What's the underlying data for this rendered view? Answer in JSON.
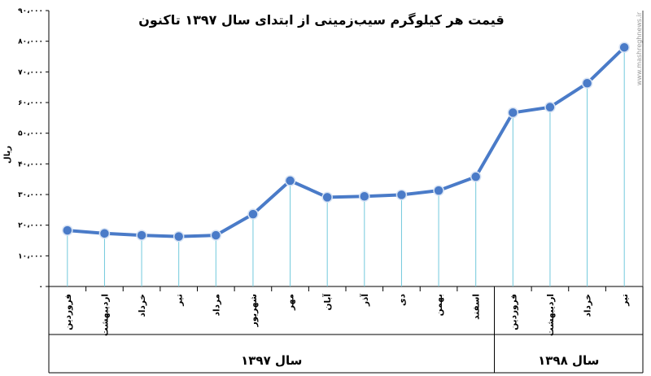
{
  "chart_data": {
    "type": "line",
    "title": "قیمت هر کیلوگرم سیب‌زمینی از ابتدای سال ۱۳۹۷ تاکنون",
    "ylabel": "ریال",
    "xlabel": "",
    "ylim": [
      0,
      90000
    ],
    "y_ticks": [
      0,
      10000,
      20000,
      30000,
      40000,
      50000,
      60000,
      70000,
      80000,
      90000
    ],
    "y_tick_labels": [
      "۰",
      "۱۰،۰۰۰",
      "۲۰،۰۰۰",
      "۳۰،۰۰۰",
      "۴۰،۰۰۰",
      "۵۰،۰۰۰",
      "۶۰،۰۰۰",
      "۷۰،۰۰۰",
      "۸۰،۰۰۰",
      "۹۰،۰۰۰"
    ],
    "categories": [
      "فروردین",
      "اردیبهشت",
      "خرداد",
      "تیر",
      "مرداد",
      "شهریور",
      "مهر",
      "آبان",
      "آذر",
      "دی",
      "بهمن",
      "اسفند",
      "فروردین",
      "اردیبهشت",
      "خرداد",
      "تیر"
    ],
    "values": [
      18300,
      17300,
      16700,
      16300,
      16700,
      23600,
      34500,
      29100,
      29400,
      29900,
      31300,
      35800,
      56700,
      58500,
      66300,
      78000
    ],
    "groups": [
      {
        "label": "سال ۱۳۹۷",
        "count": 12
      },
      {
        "label": "سال ۱۳۹۸",
        "count": 4
      }
    ],
    "grid": false,
    "colors": {
      "line": "#4a7bc8",
      "marker_fill": "#4a7bc8",
      "marker_edge": "#d7e3f4",
      "drop_lines": "#72c9dc",
      "axis": "#000000"
    }
  },
  "watermark": "www.mashreghnews.ir"
}
